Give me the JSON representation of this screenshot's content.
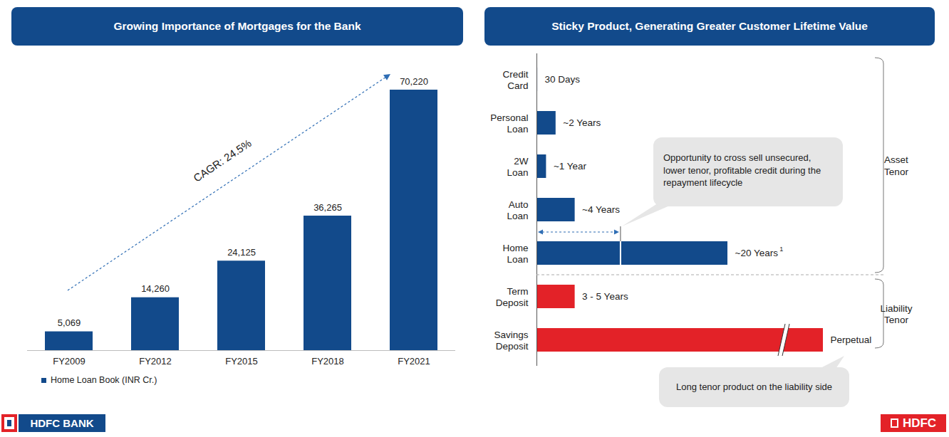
{
  "chart_data": [
    {
      "type": "bar",
      "title": "Growing Importance of Mortgages for the Bank",
      "categories": [
        "FY2009",
        "FY2012",
        "FY2015",
        "FY2018",
        "FY2021"
      ],
      "series": [
        {
          "name": "Home Loan Book (INR Cr.)",
          "color": "#124a8b",
          "values": [
            5069,
            14260,
            24125,
            36265,
            70220
          ],
          "value_labels": [
            "5,069",
            "14,260",
            "24,125",
            "36,265",
            "70,220"
          ]
        }
      ],
      "ylim": [
        0,
        80000
      ],
      "data_labels": true,
      "tick_labels": "x",
      "legend": "bottom-left",
      "annotations": [
        "CAGR: 24.5%"
      ]
    },
    {
      "type": "bar",
      "orientation": "horizontal",
      "title": "Sticky Product, Generating Greater Customer Lifetime Value",
      "categories": [
        "Credit Card",
        "Personal Loan",
        "2W Loan",
        "Auto Loan",
        "Home Loan",
        "Term Deposit",
        "Savings Deposit"
      ],
      "values": [
        0.08,
        2,
        1,
        4,
        20,
        4,
        30
      ],
      "value_labels": [
        "30 Days",
        "~2 Years",
        "~1 Year",
        "~4 Years",
        "~20 Years",
        "3 - 5 Years",
        "Perpetual"
      ],
      "footnotes": [
        null,
        null,
        null,
        null,
        "1",
        null,
        null
      ],
      "colors": [
        "#124a8b",
        "#124a8b",
        "#124a8b",
        "#124a8b",
        "#124a8b",
        "#e32228",
        "#e32228"
      ],
      "groups": [
        "Asset Tenor",
        "Asset Tenor",
        "Asset Tenor",
        "Asset Tenor",
        "Asset Tenor",
        "Liability Tenor",
        "Liability Tenor"
      ],
      "xlim": [
        0,
        30
      ],
      "data_labels": true,
      "tick_labels": false,
      "annotations": [
        "Opportunity to cross sell unsecured, lower tenor, profitable credit during the repayment lifecycle",
        "Long tenor product on the liability side"
      ]
    }
  ],
  "logos": [
    "HDFC BANK",
    "HDFC"
  ]
}
